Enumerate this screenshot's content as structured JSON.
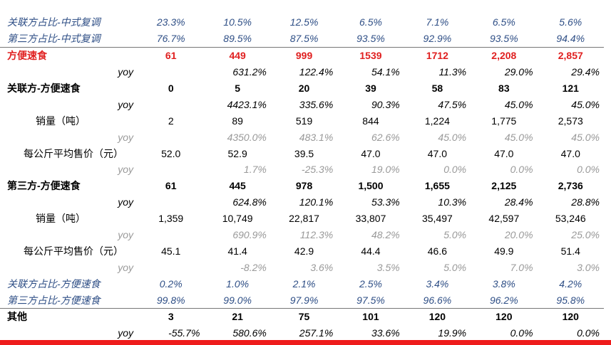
{
  "rows": [
    {
      "label": "关联方占比-中式复调",
      "type": "blue",
      "values": [
        "23.3%",
        "10.5%",
        "12.5%",
        "6.5%",
        "7.1%",
        "6.5%",
        "5.6%"
      ]
    },
    {
      "label": "第三方占比-中式复调",
      "type": "blue",
      "values": [
        "76.7%",
        "89.5%",
        "87.5%",
        "93.5%",
        "92.9%",
        "93.5%",
        "94.4%"
      ]
    },
    {
      "label": "方便速食",
      "type": "red line",
      "values": [
        "61",
        "449",
        "999",
        "1539",
        "1712",
        "2,208",
        "2,857"
      ]
    },
    {
      "label": "yoy",
      "type": "pct",
      "values": [
        "",
        "631.2%",
        "122.4%",
        "54.1%",
        "11.3%",
        "29.0%",
        "29.4%"
      ]
    },
    {
      "label": "关联方-方便速食",
      "type": "bold",
      "values": [
        "0",
        "5",
        "20",
        "39",
        "58",
        "83",
        "121"
      ]
    },
    {
      "label": "yoy",
      "type": "pct",
      "values": [
        "",
        "4423.1%",
        "335.6%",
        "90.3%",
        "47.5%",
        "45.0%",
        "45.0%"
      ]
    },
    {
      "label": "销量（吨）",
      "type": "ind1",
      "values": [
        "2",
        "89",
        "519",
        "844",
        "1,224",
        "1,775",
        "2,573"
      ]
    },
    {
      "label": "yoy",
      "type": "pct gray",
      "values": [
        "",
        "4350.0%",
        "483.1%",
        "62.6%",
        "45.0%",
        "45.0%",
        "45.0%"
      ]
    },
    {
      "label": "每公斤平均售价（元）",
      "type": "ind2",
      "values": [
        "52.0",
        "52.9",
        "39.5",
        "47.0",
        "47.0",
        "47.0",
        "47.0"
      ]
    },
    {
      "label": "yoy",
      "type": "pct gray",
      "values": [
        "",
        "1.7%",
        "-25.3%",
        "19.0%",
        "0.0%",
        "0.0%",
        "0.0%"
      ]
    },
    {
      "label": "第三方-方便速食",
      "type": "bold",
      "values": [
        "61",
        "445",
        "978",
        "1,500",
        "1,655",
        "2,125",
        "2,736"
      ]
    },
    {
      "label": "yoy",
      "type": "pct",
      "values": [
        "",
        "624.8%",
        "120.1%",
        "53.3%",
        "10.3%",
        "28.4%",
        "28.8%"
      ]
    },
    {
      "label": "销量（吨）",
      "type": "ind1",
      "values": [
        "1,359",
        "10,749",
        "22,817",
        "33,807",
        "35,497",
        "42,597",
        "53,246"
      ]
    },
    {
      "label": "yoy",
      "type": "pct gray",
      "values": [
        "",
        "690.9%",
        "112.3%",
        "48.2%",
        "5.0%",
        "20.0%",
        "25.0%"
      ]
    },
    {
      "label": "每公斤平均售价（元）",
      "type": "ind2",
      "values": [
        "45.1",
        "41.4",
        "42.9",
        "44.4",
        "46.6",
        "49.9",
        "51.4"
      ]
    },
    {
      "label": "yoy",
      "type": "pct gray",
      "values": [
        "",
        "-8.2%",
        "3.6%",
        "3.5%",
        "5.0%",
        "7.0%",
        "3.0%"
      ]
    },
    {
      "label": "关联方占比-方便速食",
      "type": "blue",
      "values": [
        "0.2%",
        "1.0%",
        "2.1%",
        "2.5%",
        "3.4%",
        "3.8%",
        "4.2%"
      ]
    },
    {
      "label": "第三方占比-方便速食",
      "type": "blue",
      "values": [
        "99.8%",
        "99.0%",
        "97.9%",
        "97.5%",
        "96.6%",
        "96.2%",
        "95.8%"
      ]
    },
    {
      "label": "其他",
      "type": "bold line",
      "values": [
        "3",
        "21",
        "75",
        "101",
        "120",
        "120",
        "120"
      ]
    },
    {
      "label": "yoy",
      "type": "pct",
      "values": [
        "-55.7%",
        "580.6%",
        "257.1%",
        "33.6%",
        "19.9%",
        "0.0%",
        "0.0%"
      ]
    }
  ]
}
